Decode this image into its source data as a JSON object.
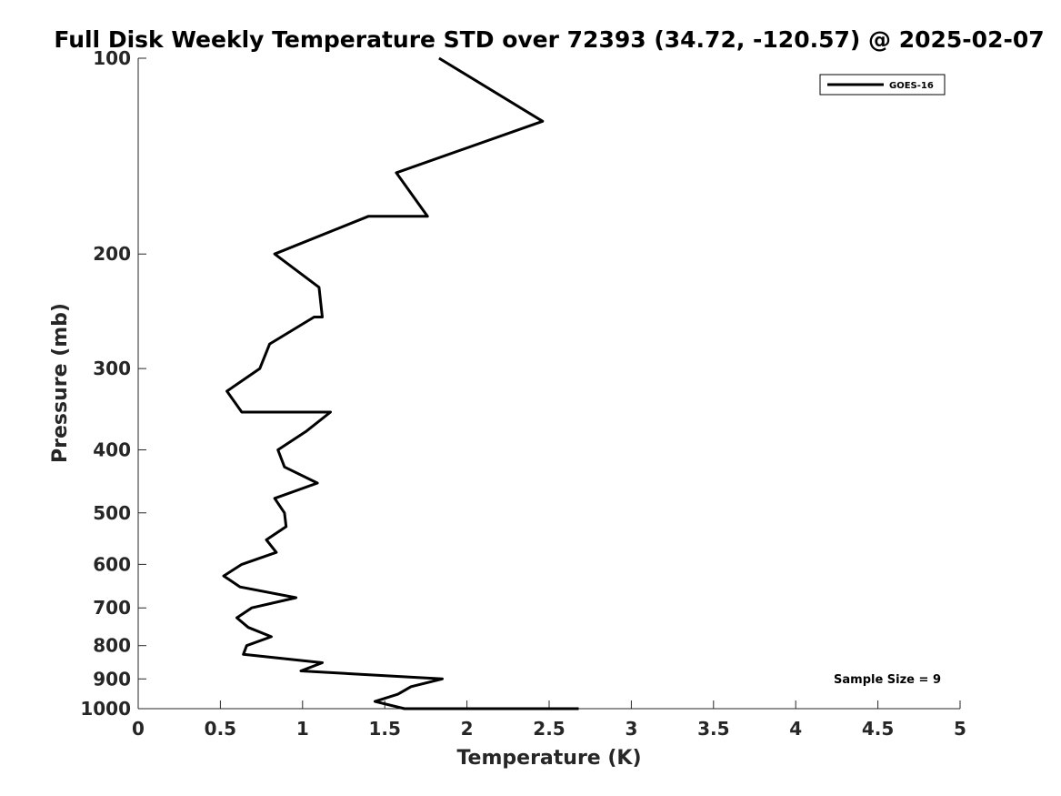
{
  "chart_data": {
    "type": "line",
    "title": "Full Disk Weekly Temperature STD over 72393 (34.72, -120.57) @ 2025-02-07",
    "xlabel": "Temperature (K)",
    "ylabel": "Pressure (mb)",
    "xlim": [
      0,
      5
    ],
    "ylim": [
      100,
      1000
    ],
    "y_scale": "log",
    "y_reversed": true,
    "grid": false,
    "legend_position": "top-right",
    "x_ticks": [
      0,
      0.5,
      1,
      1.5,
      2,
      2.5,
      3,
      3.5,
      4,
      4.5,
      5
    ],
    "x_tick_labels": [
      "0",
      "0.5",
      "1",
      "1.5",
      "2",
      "2.5",
      "3",
      "3.5",
      "4",
      "4.5",
      "5"
    ],
    "y_ticks": [
      100,
      200,
      300,
      400,
      500,
      600,
      700,
      800,
      900,
      1000
    ],
    "y_tick_labels": [
      "100",
      "200",
      "300",
      "400",
      "500",
      "600",
      "700",
      "800",
      "900",
      "1000"
    ],
    "series": [
      {
        "name": "GOES-16",
        "color": "#000000",
        "points": [
          [
            1.83,
            100
          ],
          [
            2.46,
            125
          ],
          [
            1.57,
            150
          ],
          [
            1.76,
            175
          ],
          [
            1.4,
            175
          ],
          [
            0.83,
            200
          ],
          [
            1.1,
            225
          ],
          [
            1.12,
            250
          ],
          [
            1.07,
            250
          ],
          [
            0.8,
            275
          ],
          [
            0.74,
            300
          ],
          [
            0.54,
            325
          ],
          [
            0.63,
            350
          ],
          [
            1.17,
            350
          ],
          [
            1.02,
            375
          ],
          [
            0.85,
            400
          ],
          [
            0.89,
            425
          ],
          [
            1.09,
            450
          ],
          [
            0.83,
            475
          ],
          [
            0.89,
            500
          ],
          [
            0.9,
            525
          ],
          [
            0.78,
            550
          ],
          [
            0.84,
            575
          ],
          [
            0.63,
            600
          ],
          [
            0.52,
            625
          ],
          [
            0.62,
            650
          ],
          [
            0.96,
            675
          ],
          [
            0.69,
            700
          ],
          [
            0.6,
            725
          ],
          [
            0.67,
            750
          ],
          [
            0.81,
            775
          ],
          [
            0.66,
            800
          ],
          [
            0.64,
            825
          ],
          [
            1.12,
            850
          ],
          [
            0.99,
            875
          ],
          [
            1.85,
            900
          ],
          [
            1.66,
            925
          ],
          [
            1.58,
            950
          ],
          [
            1.44,
            975
          ],
          [
            1.62,
            1000
          ],
          [
            1.8,
            1000
          ],
          [
            2.25,
            1000
          ],
          [
            2.38,
            1000
          ],
          [
            2.66,
            1000
          ],
          [
            2.68,
            1000
          ]
        ]
      }
    ],
    "annotations": [
      {
        "text": "Sample Size = 9",
        "position": "bottom-right"
      }
    ]
  }
}
